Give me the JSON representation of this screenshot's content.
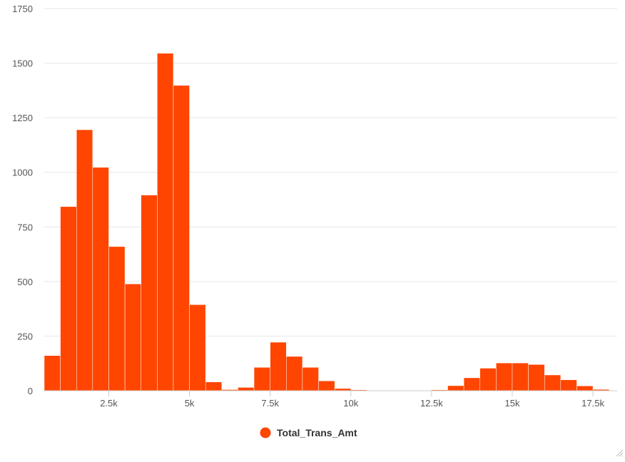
{
  "chart_data": {
    "type": "bar",
    "title": "",
    "xlabel": "",
    "ylabel": "",
    "bin_width": 500,
    "x_start": 500,
    "xlim": [
      500,
      18250
    ],
    "ylim": [
      0,
      1750
    ],
    "values": [
      161,
      843,
      1195,
      1023,
      660,
      489,
      896,
      1545,
      1398,
      394,
      40,
      5,
      15,
      107,
      222,
      157,
      107,
      45,
      10,
      4,
      1,
      1,
      1,
      1,
      4,
      23,
      59,
      103,
      127,
      127,
      120,
      72,
      50,
      22,
      6
    ],
    "x_ticks": [
      2500,
      5000,
      7500,
      10000,
      12500,
      15000,
      17500
    ],
    "x_tick_labels": [
      "2.5k",
      "5k",
      "7.5k",
      "10k",
      "12.5k",
      "15k",
      "17.5k"
    ],
    "y_ticks": [
      0,
      250,
      500,
      750,
      1000,
      1250,
      1500,
      1750
    ],
    "y_tick_labels": [
      "0",
      "250",
      "500",
      "750",
      "1000",
      "1250",
      "1500",
      "1750"
    ],
    "grid": true,
    "legend_position": "bottom-center",
    "series": [
      {
        "name": "Total_Trans_Amt",
        "color": "#ff4500"
      }
    ],
    "colors": {
      "bar": "#ff4500",
      "bar_border": "#ffffff",
      "grid": "#e6e6e6",
      "axis": "#cccccc",
      "tick_label": "#555555",
      "legend_text": "#333333"
    }
  }
}
